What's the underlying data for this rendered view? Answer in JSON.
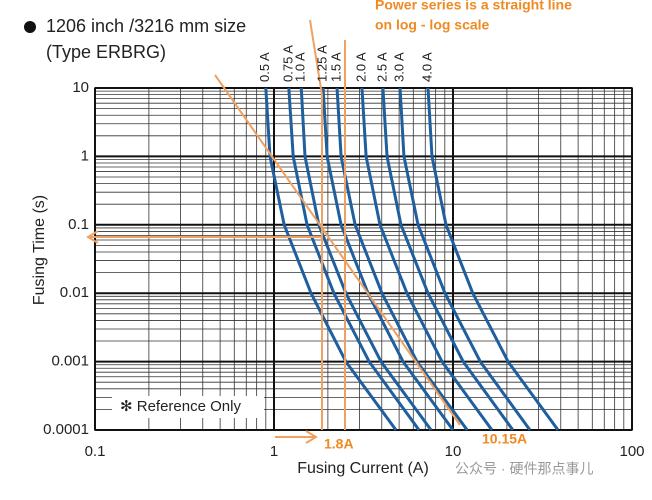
{
  "chart_data": {
    "type": "line",
    "title": "1206 inch /3216 mm size",
    "subtitle": "(Type ERBRG)",
    "x_label": "Fusing Current (A)",
    "y_label": "Fusing Time (s)",
    "xscale": "log",
    "yscale": "log",
    "grid": true,
    "xlim": [
      0.1,
      100
    ],
    "xticks": [
      0.1,
      1,
      10,
      100
    ],
    "ylim": [
      0.0001,
      10
    ],
    "yticks": [
      0.0001,
      0.001,
      0.01,
      0.1,
      1,
      10
    ],
    "color": "#1f5f9e",
    "series": [
      {
        "name": "0.5 A",
        "x": [
          0.9,
          0.95,
          1.14,
          1.61,
          2.52,
          4.8
        ],
        "values": [
          10,
          1,
          0.1,
          0.01,
          0.001,
          0.0001
        ]
      },
      {
        "name": "0.75 A",
        "x": [
          1.21,
          1.28,
          1.53,
          2.16,
          3.4,
          6.46
        ],
        "values": [
          10,
          1,
          0.1,
          0.01,
          0.001,
          0.0001
        ]
      },
      {
        "name": "1.0 A",
        "x": [
          1.42,
          1.49,
          1.78,
          2.52,
          3.96,
          7.54
        ],
        "values": [
          10,
          1,
          0.1,
          0.01,
          0.001,
          0.0001
        ]
      },
      {
        "name": "1.25 A",
        "x": [
          1.88,
          1.98,
          2.37,
          3.35,
          5.26,
          10.0
        ],
        "values": [
          10,
          1,
          0.1,
          0.01,
          0.001,
          0.0001
        ]
      },
      {
        "name": "1.5 A",
        "x": [
          2.25,
          2.37,
          2.84,
          4.01,
          6.29,
          12.0
        ],
        "values": [
          10,
          1,
          0.1,
          0.01,
          0.001,
          0.0001
        ]
      },
      {
        "name": "2.0 A",
        "x": [
          3.1,
          3.27,
          3.91,
          5.53,
          8.68,
          16.5
        ],
        "values": [
          10,
          1,
          0.1,
          0.01,
          0.001,
          0.0001
        ]
      },
      {
        "name": "2.5 A",
        "x": [
          4.06,
          4.28,
          5.12,
          7.25,
          11.4,
          21.6
        ],
        "values": [
          10,
          1,
          0.1,
          0.01,
          0.001,
          0.0001
        ]
      },
      {
        "name": "3.0 A",
        "x": [
          5.06,
          5.32,
          6.38,
          9.02,
          14.2,
          26.9
        ],
        "values": [
          10,
          1,
          0.1,
          0.01,
          0.001,
          0.0001
        ]
      },
      {
        "name": "4.0 A",
        "x": [
          7.25,
          7.63,
          9.14,
          12.9,
          20.3,
          38.6
        ],
        "values": [
          10,
          1,
          0.1,
          0.01,
          0.001,
          0.0001
        ]
      }
    ],
    "annotations": [
      "Power series is a straight line",
      "on log - log scale",
      "1.8A",
      "10.15A",
      "✻ Reference Only"
    ],
    "watermark": "公众号 · 硬件那点事儿"
  }
}
